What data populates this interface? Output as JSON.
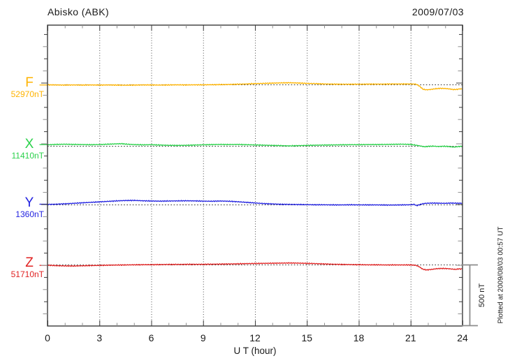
{
  "header": {
    "title": "Abisko (ABK)",
    "date": "2009/07/03"
  },
  "x_axis": {
    "label": "U T (hour)"
  },
  "scale_bar": {
    "label": "500 nT",
    "nT": 500
  },
  "plot_note": "Plotted at 2009/08/03 00:57 UT",
  "colors": {
    "axis": "#3a3a3a",
    "minor_tick": "#8f8f8f",
    "grid": "#4a4a4a",
    "scale_bar": "#8c8c8c",
    "F": "#ffb300",
    "X": "#2bd14b",
    "Y": "#2222e0",
    "Z": "#e02222"
  },
  "chart_data": {
    "type": "line",
    "xlabel": "U T (hour)",
    "x_range": [
      0,
      24
    ],
    "x_ticks": [
      0,
      3,
      6,
      9,
      12,
      15,
      18,
      21,
      24
    ],
    "x_minor_tick_interval_hours": 1,
    "grid_hours": [
      3,
      6,
      9,
      12,
      15,
      18,
      21
    ],
    "y_tick_interval_nT": 100,
    "scale_bar_nT": 500,
    "legend_position": "left",
    "grid": "dotted",
    "series": [
      {
        "name": "F",
        "color": "#ffb300",
        "baseline_nT": 52970,
        "baseline_label": "52970nT",
        "offsets_nT": [
          [
            0,
            -3
          ],
          [
            0.5,
            -4
          ],
          [
            1,
            -5
          ],
          [
            1.5,
            -4
          ],
          [
            2,
            -5
          ],
          [
            2.5,
            -4
          ],
          [
            3,
            -5
          ],
          [
            3.5,
            -4
          ],
          [
            4,
            -5
          ],
          [
            4.5,
            -6
          ],
          [
            5,
            -5
          ],
          [
            5.5,
            -4
          ],
          [
            6,
            -4
          ],
          [
            6.5,
            -5
          ],
          [
            7,
            -4
          ],
          [
            7.5,
            -3
          ],
          [
            8,
            -4
          ],
          [
            8.5,
            -3
          ],
          [
            9,
            -3
          ],
          [
            9.5,
            -2
          ],
          [
            10,
            -1
          ],
          [
            10.5,
            0
          ],
          [
            11,
            2
          ],
          [
            11.5,
            4
          ],
          [
            12,
            7
          ],
          [
            12.5,
            9
          ],
          [
            13,
            11
          ],
          [
            13.5,
            13
          ],
          [
            14,
            14
          ],
          [
            14.5,
            12
          ],
          [
            15,
            9
          ],
          [
            15.5,
            7
          ],
          [
            16,
            4
          ],
          [
            16.5,
            3
          ],
          [
            17,
            2
          ],
          [
            17.5,
            2
          ],
          [
            18,
            2
          ],
          [
            18.5,
            3
          ],
          [
            19,
            3
          ],
          [
            19.5,
            3
          ],
          [
            20,
            4
          ],
          [
            20.5,
            4
          ],
          [
            21,
            4
          ],
          [
            21.3,
            3
          ],
          [
            21.5,
            -12
          ],
          [
            21.7,
            -38
          ],
          [
            21.9,
            -44
          ],
          [
            22.1,
            -42
          ],
          [
            22.4,
            -36
          ],
          [
            22.7,
            -32
          ],
          [
            23,
            -33
          ],
          [
            23.2,
            -36
          ],
          [
            23.5,
            -42
          ],
          [
            23.7,
            -40
          ],
          [
            23.85,
            -36
          ],
          [
            24,
            -38
          ]
        ]
      },
      {
        "name": "X",
        "color": "#2bd14b",
        "baseline_nT": 11410,
        "baseline_label": "11410nT",
        "offsets_nT": [
          [
            0,
            9
          ],
          [
            0.5,
            12
          ],
          [
            1,
            14
          ],
          [
            1.5,
            12
          ],
          [
            2,
            11
          ],
          [
            2.5,
            10
          ],
          [
            3,
            11
          ],
          [
            3.5,
            14
          ],
          [
            4,
            17
          ],
          [
            4.3,
            18
          ],
          [
            4.6,
            14
          ],
          [
            5,
            11
          ],
          [
            5.5,
            9
          ],
          [
            6,
            10
          ],
          [
            6.5,
            7
          ],
          [
            7,
            5
          ],
          [
            7.5,
            4
          ],
          [
            8,
            5
          ],
          [
            8.5,
            7
          ],
          [
            9,
            9
          ],
          [
            9.5,
            11
          ],
          [
            10,
            12
          ],
          [
            10.5,
            11
          ],
          [
            11,
            12
          ],
          [
            11.5,
            10
          ],
          [
            12,
            8
          ],
          [
            12.5,
            6
          ],
          [
            13,
            4
          ],
          [
            13.5,
            2
          ],
          [
            14,
            0
          ],
          [
            14.5,
            2
          ],
          [
            15,
            4
          ],
          [
            15.5,
            6
          ],
          [
            16,
            7
          ],
          [
            16.5,
            8
          ],
          [
            17,
            9
          ],
          [
            17.5,
            10
          ],
          [
            18,
            10
          ],
          [
            18.5,
            11
          ],
          [
            19,
            11
          ],
          [
            19.5,
            12
          ],
          [
            20,
            13
          ],
          [
            20.5,
            14
          ],
          [
            21,
            12
          ],
          [
            21.2,
            8
          ],
          [
            21.5,
            1
          ],
          [
            21.8,
            -7
          ],
          [
            22,
            -4
          ],
          [
            22.3,
            -2
          ],
          [
            22.6,
            -5
          ],
          [
            22.9,
            -3
          ],
          [
            23.2,
            -5
          ],
          [
            23.5,
            -10
          ],
          [
            23.8,
            -5
          ],
          [
            24,
            -3
          ]
        ]
      },
      {
        "name": "Y",
        "color": "#2222e0",
        "baseline_nT": 1360,
        "baseline_label": "1360nT",
        "offsets_nT": [
          [
            0,
            1
          ],
          [
            0.5,
            3
          ],
          [
            1,
            6
          ],
          [
            1.5,
            10
          ],
          [
            2,
            14
          ],
          [
            2.5,
            18
          ],
          [
            3,
            22
          ],
          [
            3.5,
            26
          ],
          [
            4,
            30
          ],
          [
            4.5,
            33
          ],
          [
            5,
            34
          ],
          [
            5.5,
            31
          ],
          [
            6,
            29
          ],
          [
            6.5,
            28
          ],
          [
            7,
            29
          ],
          [
            7.5,
            30
          ],
          [
            8,
            31
          ],
          [
            8.5,
            30
          ],
          [
            9,
            28
          ],
          [
            9.5,
            27
          ],
          [
            10,
            29
          ],
          [
            10.5,
            27
          ],
          [
            11,
            23
          ],
          [
            11.5,
            18
          ],
          [
            12,
            13
          ],
          [
            12.5,
            8
          ],
          [
            13,
            5
          ],
          [
            13.5,
            2
          ],
          [
            14,
            1
          ],
          [
            14.5,
            0
          ],
          [
            15,
            -1
          ],
          [
            15.5,
            -2
          ],
          [
            16,
            -2
          ],
          [
            16.5,
            -3
          ],
          [
            17,
            -3
          ],
          [
            17.5,
            -2
          ],
          [
            18,
            -3
          ],
          [
            18.5,
            -3
          ],
          [
            19,
            -3
          ],
          [
            19.5,
            -4
          ],
          [
            20,
            -4
          ],
          [
            20.5,
            -3
          ],
          [
            21,
            -2
          ],
          [
            21.2,
            1
          ],
          [
            21.35,
            -9
          ],
          [
            21.5,
            -2
          ],
          [
            21.65,
            5
          ],
          [
            21.8,
            9
          ],
          [
            22,
            11
          ],
          [
            22.3,
            12
          ],
          [
            22.6,
            11
          ],
          [
            23,
            10
          ],
          [
            23.3,
            12
          ],
          [
            23.6,
            11
          ],
          [
            24,
            11
          ]
        ]
      },
      {
        "name": "Z",
        "color": "#e02222",
        "baseline_nT": 51710,
        "baseline_label": "51710nT",
        "offsets_nT": [
          [
            0,
            -5
          ],
          [
            0.5,
            -9
          ],
          [
            1,
            -11
          ],
          [
            1.5,
            -12
          ],
          [
            2,
            -10
          ],
          [
            2.5,
            -8
          ],
          [
            3,
            -7
          ],
          [
            3.5,
            -5
          ],
          [
            4,
            -4
          ],
          [
            4.5,
            -3
          ],
          [
            5,
            -2
          ],
          [
            5.5,
            -1
          ],
          [
            6,
            -1
          ],
          [
            6.5,
            0
          ],
          [
            7,
            1
          ],
          [
            7.5,
            1
          ],
          [
            8,
            2
          ],
          [
            8.5,
            2
          ],
          [
            9,
            2
          ],
          [
            9.5,
            3
          ],
          [
            10,
            4
          ],
          [
            10.5,
            5
          ],
          [
            11,
            6
          ],
          [
            11.5,
            8
          ],
          [
            12,
            9
          ],
          [
            12.5,
            10
          ],
          [
            13,
            11
          ],
          [
            13.5,
            12
          ],
          [
            14,
            13
          ],
          [
            14.5,
            12
          ],
          [
            15,
            10
          ],
          [
            15.5,
            8
          ],
          [
            16,
            5
          ],
          [
            16.5,
            3
          ],
          [
            17,
            1
          ],
          [
            17.5,
            0
          ],
          [
            18,
            -1
          ],
          [
            18.5,
            -2
          ],
          [
            19,
            -2
          ],
          [
            19.5,
            -3
          ],
          [
            20,
            -3
          ],
          [
            20.5,
            -3
          ],
          [
            21,
            -3
          ],
          [
            21.3,
            -6
          ],
          [
            21.5,
            -18
          ],
          [
            21.7,
            -38
          ],
          [
            21.9,
            -44
          ],
          [
            22.2,
            -40
          ],
          [
            22.5,
            -34
          ],
          [
            22.8,
            -32
          ],
          [
            23.1,
            -33
          ],
          [
            23.4,
            -37
          ],
          [
            23.6,
            -40
          ],
          [
            23.8,
            -35
          ],
          [
            24,
            -37
          ]
        ]
      }
    ]
  }
}
